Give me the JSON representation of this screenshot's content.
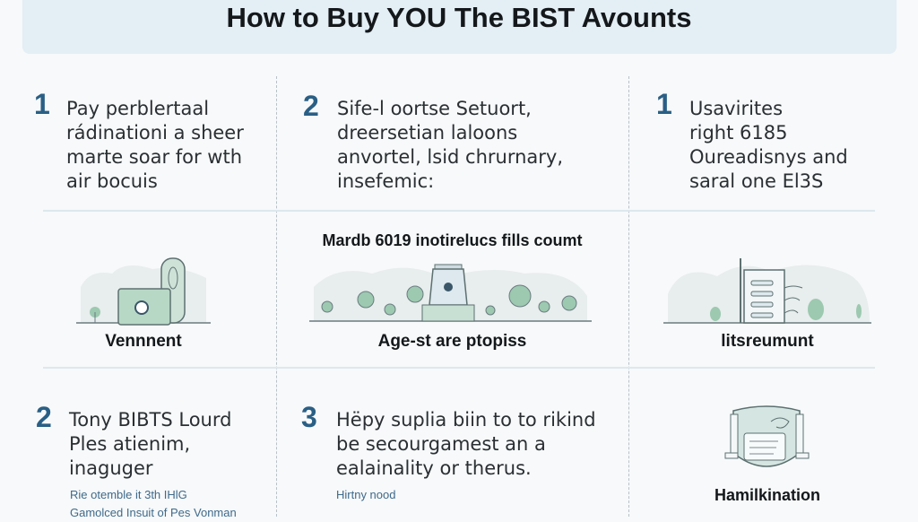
{
  "title": "How to Buy YOU The BIST Avounts",
  "colors": {
    "accent": "#2a5f85",
    "banner": "#e3eef5",
    "illustration_green": "#9cc9b0"
  },
  "steps_top": [
    {
      "number": "1",
      "lines": [
        "Pay perblertaal",
        "rádinationi a sheer",
        "marte soar for wth",
        "air bocuis"
      ]
    },
    {
      "number": "2",
      "lines": [
        "Sife-l oortse Setuort,",
        "dreersetian laloons",
        "anvortel, lsid chrurnary,",
        "insefemic:"
      ]
    },
    {
      "number": "1",
      "lines": [
        "Usavirites",
        "right 6185",
        "Oureadisnys and",
        "saral one El3S"
      ]
    }
  ],
  "middle": {
    "heading": "Mardb 6019 inotirelucs fills coumt",
    "captions": [
      "Vennnent",
      "Age-st are ptopiss",
      "litsreumunt"
    ],
    "icons": [
      "laptop-clock-icon",
      "building-pin-icon",
      "document-server-icon"
    ]
  },
  "steps_bottom": [
    {
      "number": "2",
      "lines": [
        "Tony BIBTS Lourd",
        "Ples atienim,",
        "inaguger"
      ],
      "notes": [
        "Rie otemble it 3th IHlG",
        "Gamolced Insuit of Pes Vonman"
      ]
    },
    {
      "number": "3",
      "lines": [
        "Hëpy suplia biin to to rikind",
        "be secourgamest an a",
        "ealainality or therus."
      ],
      "notes": [
        "Hirtny nood"
      ]
    }
  ],
  "bottom_right": {
    "caption": "Hamilkination",
    "icon": "shield-document-icon"
  }
}
